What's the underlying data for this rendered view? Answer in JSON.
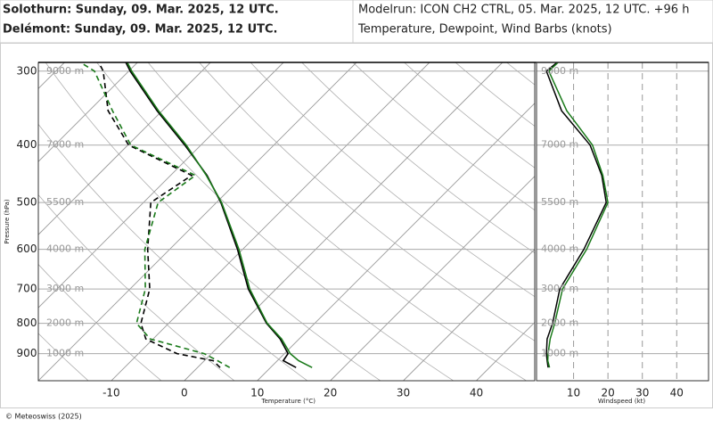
{
  "header": {
    "lines": [
      {
        "text": "Solothurn: Sunday, 09. Mar. 2025, 12 UTC.",
        "color": "#000000"
      },
      {
        "text": "Delémont: Sunday, 09. Mar. 2025, 12 UTC.",
        "color": "#1a7a1a"
      }
    ],
    "model": "Modelrun: ICON CH2 CTRL, 05. Mar. 2025, 12 UTC. +96 h",
    "subtitle": "Temperature, Dewpoint, Wind Barbs (knots)"
  },
  "footer": "© Meteoswiss (2025)",
  "chart_data": [
    {
      "type": "skewt",
      "ylabel": "Pressure (hPa)",
      "xlabel": "Temperature (°C)",
      "log_y": true,
      "grid": true,
      "ylim": [
        1000,
        290
      ],
      "yticks": [
        300,
        400,
        500,
        600,
        700,
        800,
        900
      ],
      "xlim": [
        -20,
        48
      ],
      "xticks": [
        -10,
        0,
        10,
        20,
        30,
        40
      ],
      "altitude_labels": [
        {
          "y": 300,
          "label": "9000 m"
        },
        {
          "y": 400,
          "label": "7000 m"
        },
        {
          "y": 500,
          "label": "5500 m"
        },
        {
          "y": 600,
          "label": "4000 m"
        },
        {
          "y": 700,
          "label": "3000 m"
        },
        {
          "y": 800,
          "label": "2000 m"
        },
        {
          "y": 900,
          "label": "1000 m"
        }
      ],
      "y": [
        950,
        925,
        900,
        850,
        800,
        700,
        600,
        500,
        450,
        400,
        350,
        300,
        290
      ],
      "series": [
        {
          "color": "#000000",
          "dash": false,
          "values": [
            13.5,
            10.8,
            10.5,
            7.4,
            3.4,
            -3.8,
            -10.7,
            -19.4,
            -25.0,
            -32.2,
            -40.7,
            -49.8,
            -51.6
          ]
        },
        {
          "color": "#1a7a1a",
          "dash": false,
          "values": [
            15.7,
            12.9,
            10.8,
            7.6,
            3.5,
            -3.6,
            -10.5,
            -19.3,
            -25.1,
            -32.0,
            -40.5,
            -49.6,
            -51.4
          ]
        },
        {
          "color": "#000000",
          "dash": true,
          "values": [
            3.1,
            1.2,
            -4.7,
            -11.0,
            -13.8,
            -17.3,
            -23.0,
            -29.0,
            -27.1,
            -39.9,
            -47.4,
            -53.5,
            -55.3
          ]
        },
        {
          "color": "#1a7a1a",
          "dash": true,
          "values": [
            4.4,
            1.8,
            -1.0,
            -10.4,
            -14.4,
            -17.9,
            -23.4,
            -28.0,
            -26.6,
            -39.6,
            -46.8,
            -54.7,
            -57.8
          ]
        }
      ]
    },
    {
      "type": "windprofile",
      "xlabel": "Windspeed (kt)",
      "log_y": true,
      "grid": true,
      "ylim": [
        1000,
        290
      ],
      "yticks": [
        300,
        400,
        500,
        600,
        700,
        800,
        900
      ],
      "xlim": [
        0,
        49
      ],
      "xticks": [
        10,
        20,
        30,
        40
      ],
      "altitude_labels": [
        {
          "y": 300,
          "label": "9000 m"
        },
        {
          "y": 400,
          "label": "7000 m"
        },
        {
          "y": 500,
          "label": "5500 m"
        },
        {
          "y": 600,
          "label": "4000 m"
        },
        {
          "y": 700,
          "label": "3000 m"
        },
        {
          "y": 800,
          "label": "2000 m"
        },
        {
          "y": 900,
          "label": "1000 m"
        }
      ],
      "y": [
        950,
        925,
        900,
        850,
        800,
        700,
        600,
        500,
        450,
        400,
        350,
        300,
        290
      ],
      "series": [
        {
          "color": "#000000",
          "values": [
            2.6,
            2.3,
            2.1,
            2.3,
            3.9,
            6.0,
            13.0,
            19.5,
            18.2,
            14.8,
            6.5,
            2.1,
            5.2
          ]
        },
        {
          "color": "#1a7a1a",
          "values": [
            3.0,
            2.5,
            2.6,
            3.2,
            4.5,
            6.8,
            13.8,
            20.0,
            18.5,
            15.5,
            8.0,
            2.8,
            5.5
          ]
        }
      ]
    }
  ]
}
